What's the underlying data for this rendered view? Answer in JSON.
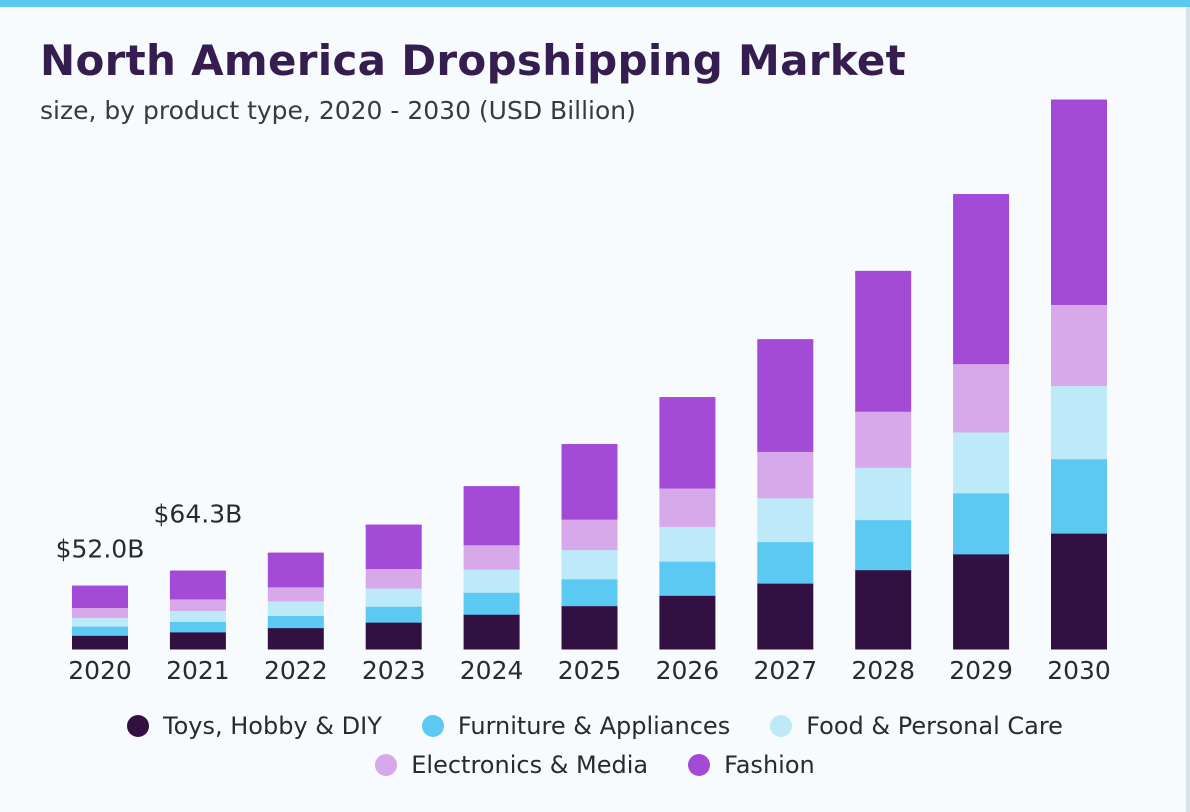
{
  "chart_data": {
    "type": "bar",
    "stacked": true,
    "title": "North America Dropshipping Market",
    "subtitle": "size, by product type, 2020 - 2030 (USD Billion)",
    "categories": [
      "2020",
      "2021",
      "2022",
      "2023",
      "2024",
      "2025",
      "2026",
      "2027",
      "2028",
      "2029",
      "2030"
    ],
    "series": [
      {
        "name": "Toys, Hobby & DIY",
        "color": "#331042",
        "values": [
          11.2,
          14.0,
          17.5,
          22.0,
          28.5,
          35.5,
          44.0,
          54.0,
          65.0,
          78.0,
          95.0
        ]
      },
      {
        "name": "Furniture & Appliances",
        "color": "#5bc9f1",
        "values": [
          7.5,
          8.6,
          10.0,
          13.0,
          18.0,
          22.0,
          28.0,
          34.0,
          41.0,
          50.0,
          61.0
        ]
      },
      {
        "name": "Food & Personal Care",
        "color": "#bde9f8",
        "values": [
          7.3,
          9.0,
          12.0,
          15.0,
          19.0,
          24.0,
          28.5,
          36.0,
          43.0,
          50.0,
          60.0
        ]
      },
      {
        "name": "Electronics & Media",
        "color": "#d7a8ea",
        "values": [
          8.0,
          9.5,
          11.5,
          16.0,
          20.0,
          25.0,
          31.5,
          38.0,
          46.0,
          56.0,
          66.5
        ]
      },
      {
        "name": "Fashion",
        "color": "#a34bd6",
        "values": [
          18.0,
          23.2,
          28.0,
          36.0,
          48.0,
          61.5,
          74.5,
          92.0,
          115.0,
          139.0,
          168.0
        ]
      }
    ],
    "totals_labels": {
      "2020": "$52.0B",
      "2021": "$64.3B"
    },
    "ylim": [
      0,
      460
    ],
    "xlabel": "",
    "ylabel": "",
    "legend_position": "bottom",
    "grid": false
  }
}
